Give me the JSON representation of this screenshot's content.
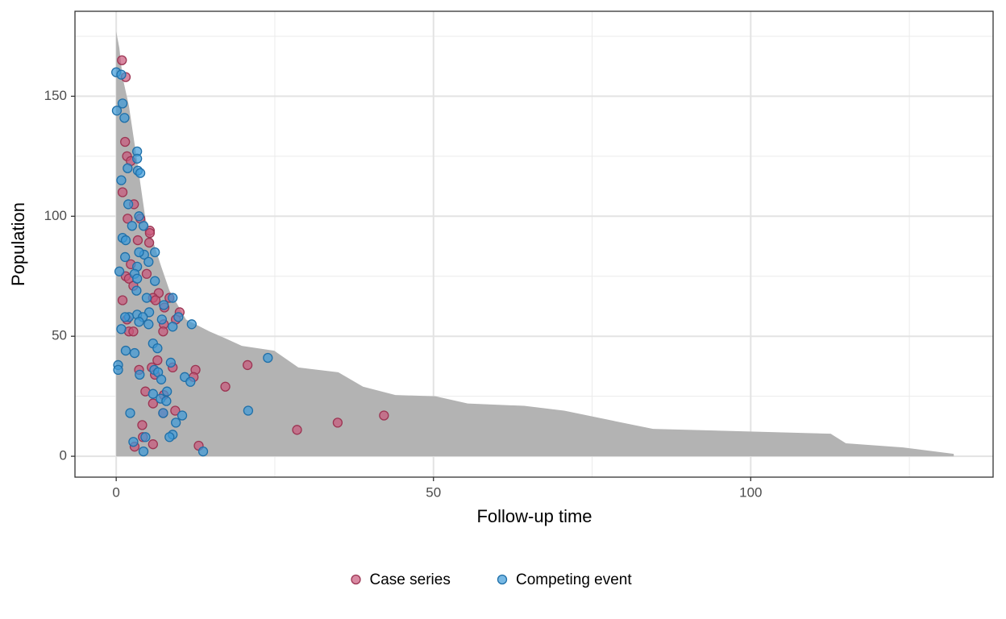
{
  "chart_data": {
    "type": "scatter",
    "x_label": "Follow-up time",
    "y_label": "Population",
    "xlim": [
      -6.5,
      138.2
    ],
    "ylim": [
      -8.7,
      185.4
    ],
    "xticks": [
      0,
      50,
      100
    ],
    "yticks": [
      0,
      50,
      100,
      150
    ],
    "x_minor_ticks": [
      25,
      75,
      125
    ],
    "y_minor_ticks": [
      25,
      75,
      125,
      175
    ],
    "grid": true,
    "legend": "bottom",
    "area": {
      "color": "#b3b3b3",
      "x": [
        0,
        0.5,
        1,
        2,
        3.3,
        4.6,
        6,
        7.1,
        8.4,
        11,
        14.7,
        17.3,
        19.8,
        24.9,
        28.7,
        35,
        38.9,
        44,
        50.3,
        55.4,
        64.3,
        70.6,
        77,
        84.6,
        112.6,
        115,
        124,
        132
      ],
      "values": [
        177,
        170,
        158,
        146,
        123,
        99,
        88,
        79,
        69,
        57,
        52,
        49,
        46,
        44,
        37,
        35,
        29,
        25.5,
        25,
        22,
        21,
        19,
        15.5,
        11.4,
        9.4,
        5.4,
        3.7,
        1
      ]
    },
    "series": [
      {
        "name": "Case series",
        "color": "#c9577a",
        "stroke": "#9c3553",
        "x": [
          0.9,
          1.5,
          1.4,
          1.7,
          2.3,
          1,
          2.8,
          1.8,
          3.8,
          3.4,
          5.3,
          5.3,
          5.2,
          2.3,
          4.8,
          1.5,
          2,
          2.7,
          6.7,
          5.8,
          6.2,
          1,
          7.6,
          8.4,
          10,
          9.4,
          1.7,
          7.5,
          2,
          2.7,
          7.4,
          6.5,
          8.9,
          5.6,
          12.5,
          3.6,
          6.1,
          12.2,
          20.7,
          17.2,
          4.6,
          7.5,
          5.8,
          9.3,
          7.4,
          4.1,
          4.2,
          5.8,
          2.9,
          13,
          28.5,
          34.9,
          42.2
        ],
        "values": [
          165,
          158,
          131,
          125,
          123,
          110,
          105,
          99,
          99,
          90,
          94,
          93,
          89,
          80,
          76,
          75,
          74,
          71,
          68,
          66,
          65,
          65,
          62,
          66,
          60,
          57,
          57,
          55,
          52,
          52,
          52,
          40,
          37,
          37,
          36,
          36,
          34,
          33,
          38,
          29,
          27,
          25.5,
          22,
          19,
          18,
          13,
          8,
          5,
          4,
          4.4,
          11,
          14,
          17
        ]
      },
      {
        "name": "Competing event",
        "color": "#3d9ad8",
        "stroke": "#1f6fa8",
        "x": [
          0,
          0.8,
          1,
          0.1,
          1.3,
          3.3,
          3.3,
          3.4,
          3.8,
          1.8,
          0.8,
          1.9,
          3.6,
          2.5,
          4.3,
          1,
          1.5,
          6.1,
          4.4,
          3.6,
          5.1,
          1.4,
          3.3,
          0.5,
          2.9,
          3.3,
          6.1,
          3.2,
          4.8,
          8.9,
          7.5,
          5.2,
          3.3,
          4.2,
          2,
          1.4,
          7.2,
          9.8,
          11.9,
          5.1,
          3.6,
          0.8,
          8.9,
          5.8,
          6.5,
          1.5,
          2.9,
          23.9,
          8.6,
          0.3,
          0.3,
          6,
          6.6,
          3.7,
          10.8,
          7.1,
          11.7,
          8,
          5.8,
          7,
          7.9,
          20.8,
          2.2,
          7.4,
          10.4,
          9.4,
          8.9,
          8.4,
          4.6,
          2.7,
          13.7,
          4.3
        ],
        "values": [
          160,
          159,
          147,
          144,
          141,
          127,
          124,
          119,
          118,
          120,
          115,
          105,
          100,
          96,
          96,
          91,
          90,
          85,
          84,
          85,
          81,
          83,
          79,
          77,
          76,
          74,
          73,
          69,
          66,
          66,
          63,
          60,
          59,
          58,
          58,
          58,
          57,
          58,
          55,
          55,
          56,
          53,
          54,
          47,
          45,
          44,
          43,
          41,
          39,
          38,
          36,
          36,
          35,
          34,
          33,
          32,
          31,
          27,
          26,
          24,
          23,
          19,
          18,
          18,
          17,
          14,
          9,
          8,
          8,
          6,
          2,
          2
        ]
      }
    ]
  }
}
